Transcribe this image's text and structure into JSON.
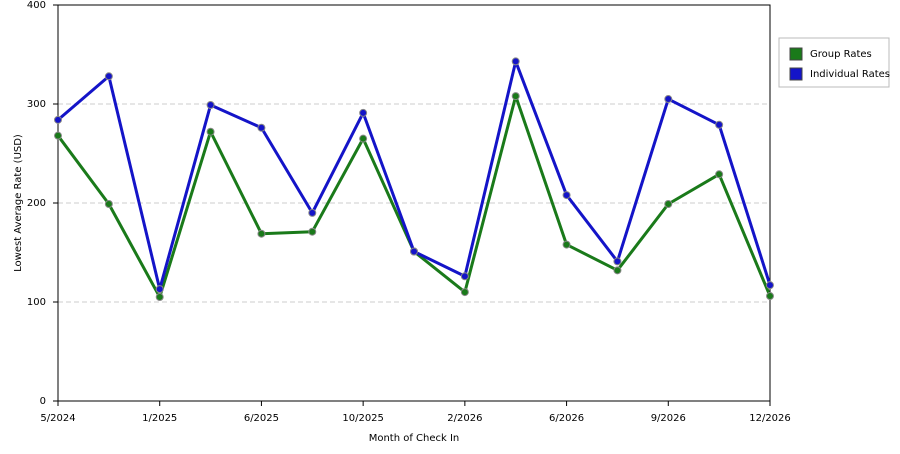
{
  "chart_data": {
    "type": "line",
    "x_label": "Month of Check In",
    "y_label": "Lowest Average Rate (USD)",
    "categories": [
      "5/2024",
      null,
      "1/2025",
      null,
      "6/2025",
      null,
      "10/2025",
      null,
      "2/2026",
      null,
      "6/2026",
      null,
      "9/2026",
      null,
      "12/2026"
    ],
    "series": [
      {
        "name": "Group Rates",
        "color": "#1a7a1a",
        "values": [
          268,
          199,
          105,
          272,
          169,
          171,
          265,
          151,
          110,
          308,
          158,
          132,
          199,
          229,
          106
        ]
      },
      {
        "name": "Individual Rates",
        "color": "#1414c8",
        "values": [
          284,
          328,
          113,
          299,
          276,
          190,
          291,
          151,
          126,
          343,
          208,
          141,
          305,
          279,
          117
        ]
      }
    ],
    "ylim": [
      0,
      400
    ],
    "yticks": [
      0,
      100,
      200,
      300,
      400
    ],
    "grid": true,
    "legend": "right"
  }
}
